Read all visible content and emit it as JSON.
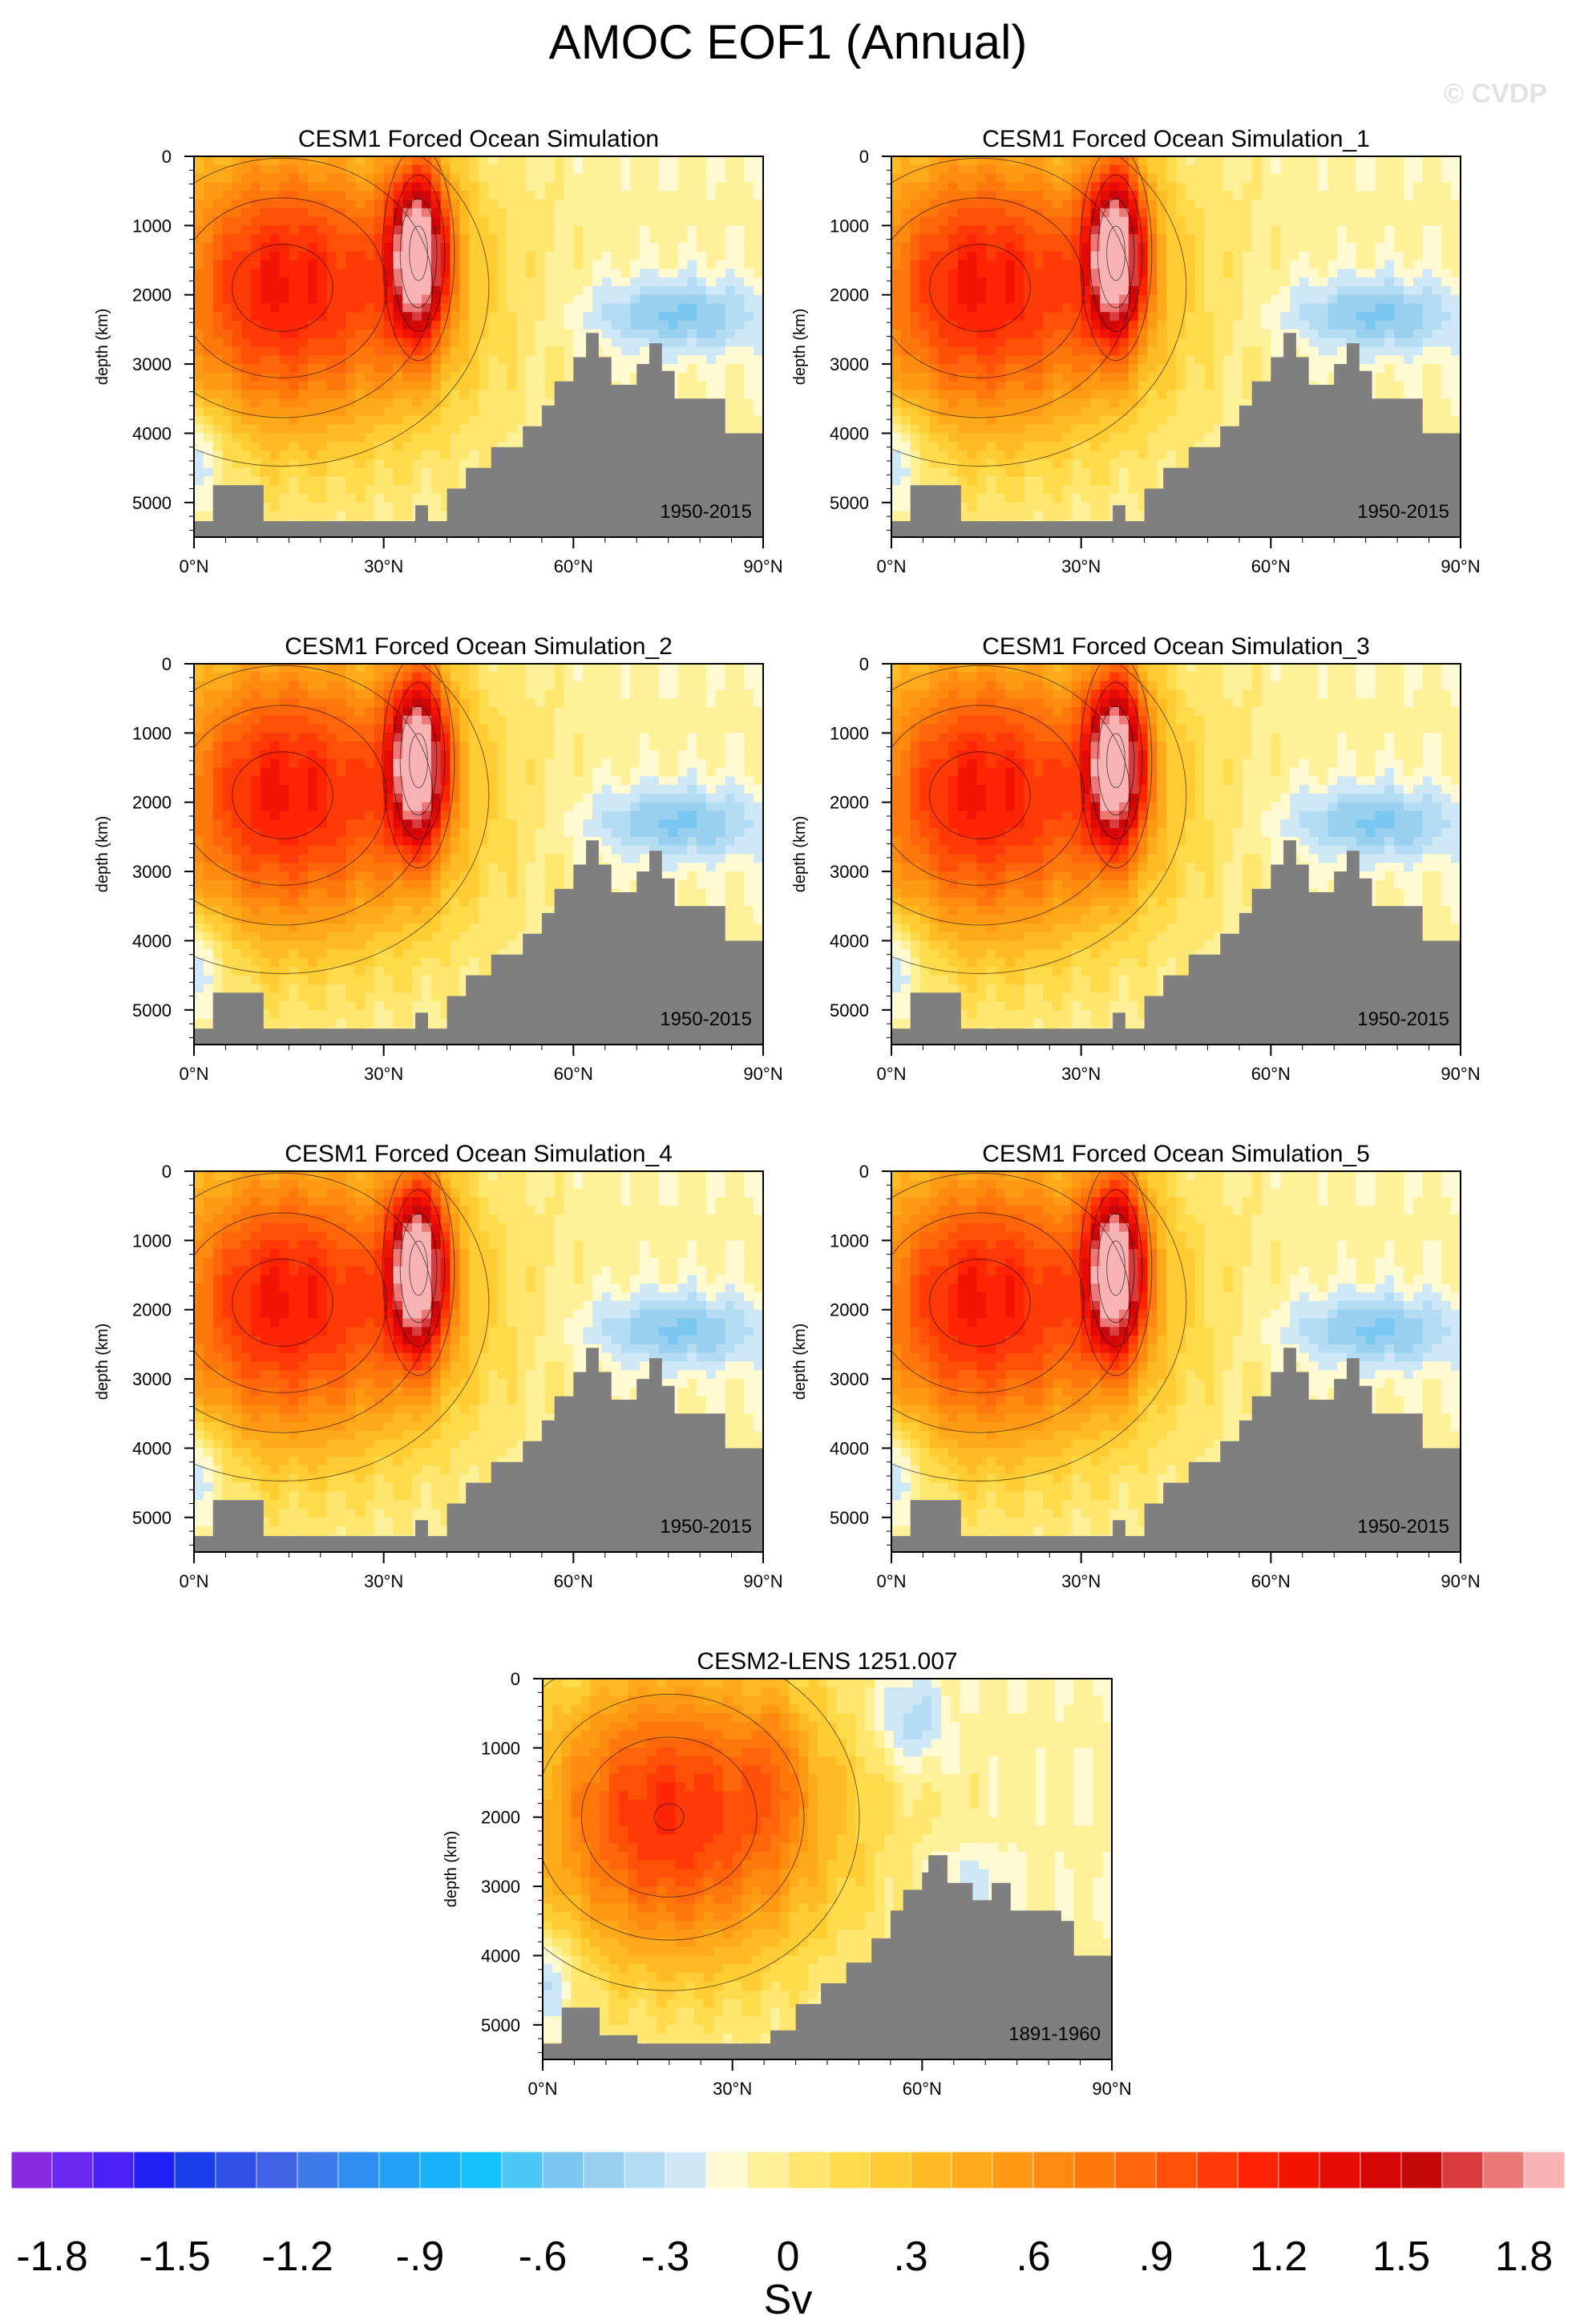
{
  "title": "AMOC EOF1 (Annual)",
  "watermark": "© CVDP",
  "chart_data": {
    "type": "heatmap",
    "panels": [
      {
        "title": "CESM1 Forced Ocean Simulation",
        "period": "1950-2015"
      },
      {
        "title": "CESM1 Forced Ocean Simulation_1",
        "period": "1950-2015"
      },
      {
        "title": "CESM1 Forced Ocean Simulation_2",
        "period": "1950-2015"
      },
      {
        "title": "CESM1 Forced Ocean Simulation_3",
        "period": "1950-2015"
      },
      {
        "title": "CESM1 Forced Ocean Simulation_4",
        "period": "1950-2015"
      },
      {
        "title": "CESM1 Forced Ocean Simulation_5",
        "period": "1950-2015"
      },
      {
        "title": "CESM2-LENS 1251.007",
        "period": "1891-1960"
      }
    ],
    "ylabel": "depth (km)",
    "yticks": [
      "0",
      "1000",
      "2000",
      "3000",
      "4000",
      "5000"
    ],
    "xticks": [
      "0°N",
      "30°N",
      "60°N",
      "90°N"
    ],
    "xlim": [
      0,
      90
    ],
    "ylim": [
      5500,
      0
    ],
    "colorbar": {
      "label": "Sv",
      "ticks": [
        "-1.8",
        "-1.5",
        "-1.2",
        "-.9",
        "-.6",
        "-.3",
        "0",
        ".3",
        ".6",
        ".9",
        "1.2",
        "1.5",
        "1.8"
      ],
      "colors": [
        "#8a2be2",
        "#6a28ef",
        "#4a22f5",
        "#2020f4",
        "#1a3ee8",
        "#3050e5",
        "#3f62e6",
        "#3b7ae8",
        "#2f8ff0",
        "#23a2f5",
        "#17b2f8",
        "#15c2fb",
        "#4cc6f7",
        "#7ac8f0",
        "#9ad0ef",
        "#b4dcf3",
        "#cfe8f7",
        "#fffad2",
        "#fff09a",
        "#ffe66e",
        "#ffda4a",
        "#ffcc33",
        "#ffbb24",
        "#ffaa1a",
        "#ff9a14",
        "#ff8a10",
        "#ff780c",
        "#ff650a",
        "#ff5008",
        "#ff3a06",
        "#ff2404",
        "#f41404",
        "#e40a06",
        "#d40608",
        "#c5080a",
        "#d83c3c",
        "#ec7878",
        "#f8b4b4"
      ]
    },
    "fields": {
      "primary": {
        "amp": 1.3,
        "cx": 14,
        "cz": 1900,
        "sx": 19,
        "sz": 1500,
        "sxLeft": 14,
        "core": {
          "amp": 1.75,
          "cx": 35.5,
          "cz": 1400,
          "sx": 3.3,
          "sz": 900
        },
        "neg": [
          {
            "amp": -0.45,
            "cx": 76,
            "cz": 2300,
            "sx": 10,
            "sz": 380
          }
        ],
        "south": [
          {
            "amp": -0.35,
            "cx": 0,
            "cz": 4300,
            "sx": 4,
            "sz": 500
          }
        ],
        "bathy": [
          [
            0,
            5270
          ],
          [
            3,
            5270
          ],
          [
            3,
            4750
          ],
          [
            11,
            4750
          ],
          [
            11,
            5270
          ],
          [
            35,
            5270
          ],
          [
            35,
            5040
          ],
          [
            37,
            5040
          ],
          [
            37,
            5270
          ],
          [
            40,
            5270
          ],
          [
            40,
            4800
          ],
          [
            43,
            4800
          ],
          [
            43,
            4500
          ],
          [
            47,
            4500
          ],
          [
            47,
            4200
          ],
          [
            52,
            4200
          ],
          [
            52,
            3900
          ],
          [
            55,
            3900
          ],
          [
            55,
            3600
          ],
          [
            57,
            3600
          ],
          [
            57,
            3250
          ],
          [
            60,
            3250
          ],
          [
            60,
            2900
          ],
          [
            62,
            2900
          ],
          [
            62,
            2550
          ],
          [
            64,
            2550
          ],
          [
            64,
            2900
          ],
          [
            66,
            2900
          ],
          [
            66,
            3300
          ],
          [
            70,
            3300
          ],
          [
            70,
            3000
          ],
          [
            72,
            3000
          ],
          [
            72,
            2700
          ],
          [
            74,
            2700
          ],
          [
            74,
            3100
          ],
          [
            76,
            3100
          ],
          [
            76,
            3500
          ],
          [
            81,
            3500
          ],
          [
            81,
            3500
          ],
          [
            84,
            3500
          ],
          [
            84,
            4000
          ],
          [
            90,
            4000
          ]
        ]
      },
      "lens": {
        "amp": 1.2,
        "cx": 20,
        "cz": 2000,
        "sx": 18,
        "sz": 1500,
        "sxLeft": 15,
        "core": {
          "amp": 0.25,
          "cx": 36.5,
          "cz": 1300,
          "sx": 3,
          "sz": 800
        },
        "neg": [
          {
            "amp": -0.35,
            "cx": 58,
            "cz": 600,
            "sx": 4,
            "sz": 500
          },
          {
            "amp": -0.2,
            "cx": 66,
            "cz": 3000,
            "sx": 6,
            "sz": 400
          }
        ],
        "south": [
          {
            "amp": -0.35,
            "cx": 0,
            "cz": 4300,
            "sx": 4,
            "sz": 500
          }
        ],
        "bathy": [
          [
            0,
            5270
          ],
          [
            3,
            5270
          ],
          [
            3,
            4750
          ],
          [
            9,
            4750
          ],
          [
            9,
            5150
          ],
          [
            15,
            5150
          ],
          [
            15,
            5270
          ],
          [
            36,
            5270
          ],
          [
            36,
            5080
          ],
          [
            40,
            5080
          ],
          [
            40,
            4700
          ],
          [
            44,
            4700
          ],
          [
            44,
            4400
          ],
          [
            48,
            4400
          ],
          [
            48,
            4100
          ],
          [
            52,
            4100
          ],
          [
            52,
            3750
          ],
          [
            55,
            3750
          ],
          [
            55,
            3350
          ],
          [
            57,
            3350
          ],
          [
            57,
            3050
          ],
          [
            60,
            3050
          ],
          [
            60,
            2800
          ],
          [
            61,
            2800
          ],
          [
            61,
            2550
          ],
          [
            64,
            2550
          ],
          [
            64,
            2950
          ],
          [
            68,
            2950
          ],
          [
            68,
            3200
          ],
          [
            71,
            3200
          ],
          [
            71,
            2950
          ],
          [
            74,
            2950
          ],
          [
            74,
            3350
          ],
          [
            82,
            3350
          ],
          [
            82,
            3500
          ],
          [
            84,
            3500
          ],
          [
            84,
            4000
          ],
          [
            90,
            4000
          ]
        ]
      }
    }
  }
}
